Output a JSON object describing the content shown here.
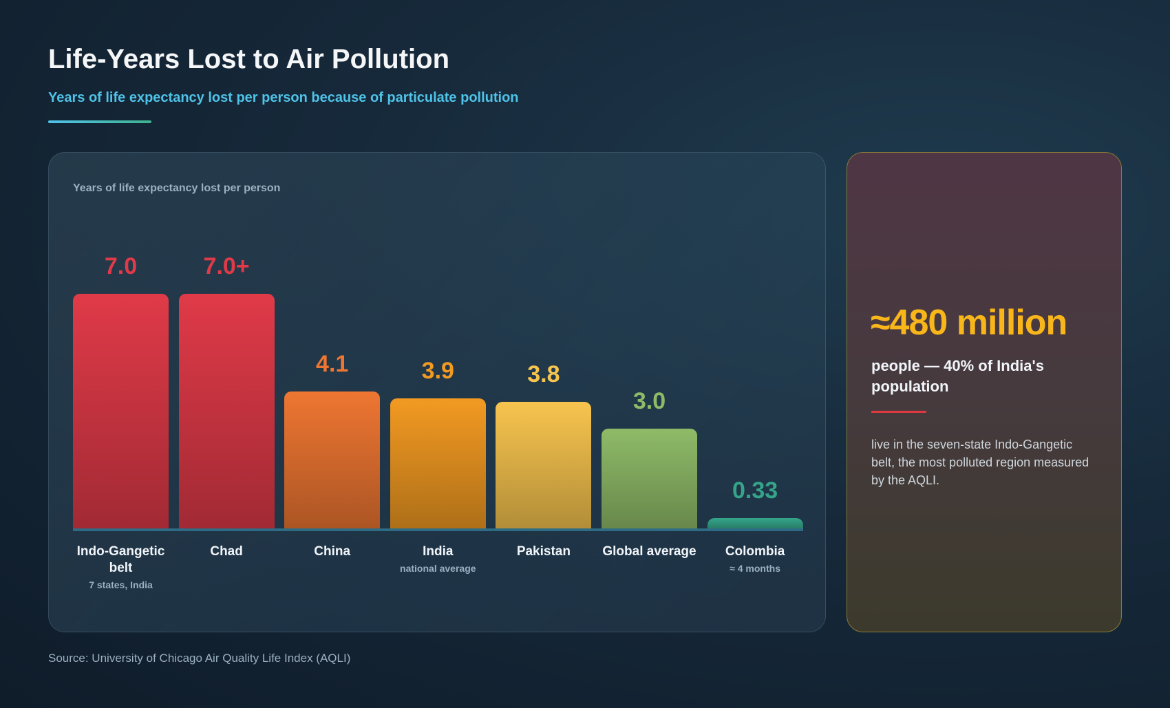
{
  "header": {
    "title": "Life-Years Lost to Air Pollution",
    "subtitle": "Years of life expectancy lost per person because of particulate pollution"
  },
  "chart_data": {
    "type": "bar",
    "ylabel": "Years of life expectancy lost per person",
    "categories": [
      "Indo-Gangetic belt",
      "Chad",
      "China",
      "India",
      "Pakistan",
      "Global average",
      "Colombia"
    ],
    "subtitles": [
      "7 states, India",
      "",
      "",
      "national average",
      "",
      "",
      "≈ 4 months"
    ],
    "values": [
      7.0,
      7.0,
      4.1,
      3.9,
      3.8,
      3.0,
      0.33
    ],
    "value_labels": [
      "7.0",
      "7.0+",
      "4.1",
      "3.9",
      "3.8",
      "3.0",
      "0.33"
    ],
    "colors": [
      "#e03a48",
      "#e03a48",
      "#ee7632",
      "#f29a22",
      "#f7c44e",
      "#8fbb68",
      "#35a58a"
    ],
    "ylim": [
      0,
      7.0
    ],
    "grid": false,
    "legend": "none"
  },
  "side_panel": {
    "big_stat": "≈480 million",
    "stat_desc": "people — 40% of India's population",
    "body": "live in the seven-state Indo-Gangetic belt, the most polluted region measured by the AQLI."
  },
  "footer": {
    "source": "Source: University of Chicago Air Quality Life Index (AQLI)"
  }
}
